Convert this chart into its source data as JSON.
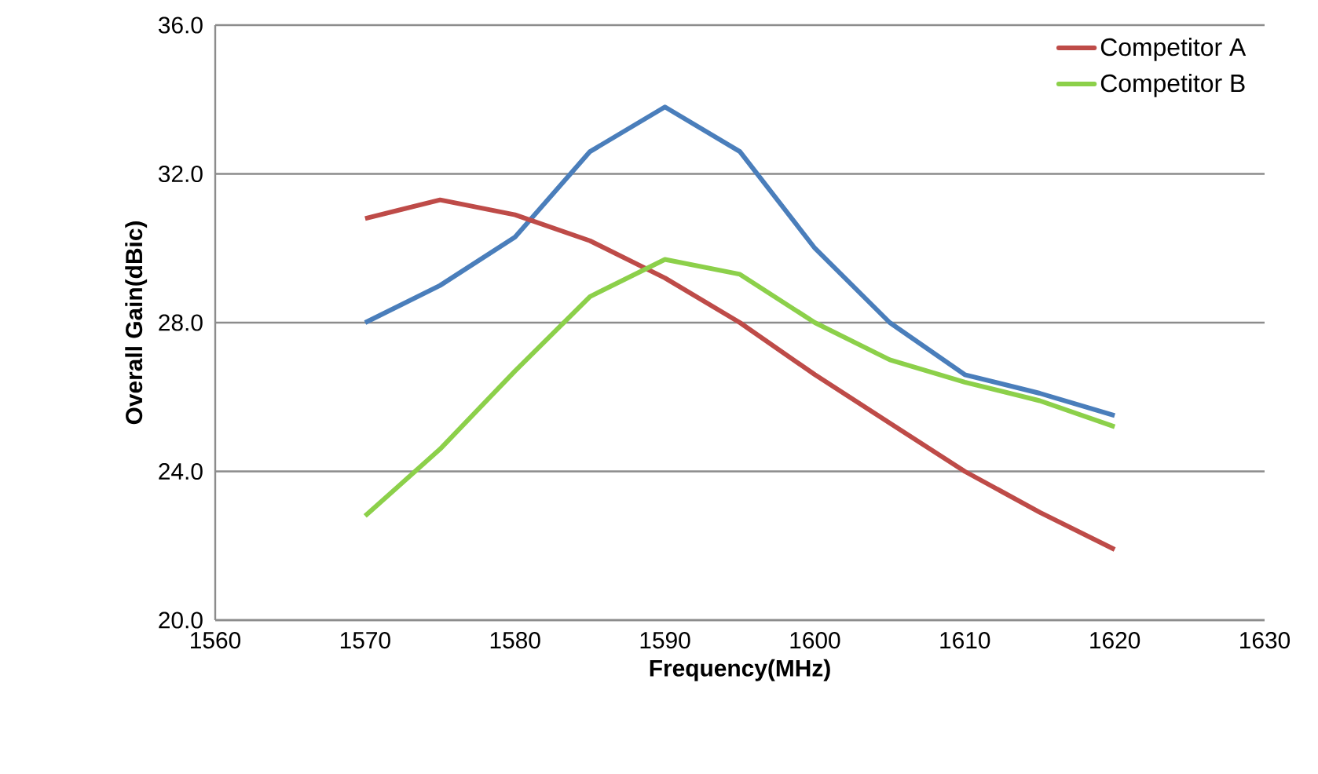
{
  "chart_data": {
    "type": "line",
    "xlabel": "Frequency(MHz)",
    "ylabel": "Overall Gain(dBic)",
    "x": [
      1570,
      1575,
      1580,
      1585,
      1590,
      1595,
      1600,
      1605,
      1610,
      1615,
      1620
    ],
    "series": [
      {
        "color": "#4a7ebb",
        "values": [
          28.0,
          29.0,
          30.3,
          32.6,
          33.8,
          32.6,
          30.0,
          28.0,
          26.6,
          26.1,
          25.5
        ]
      },
      {
        "name": "Competitor A",
        "color": "#be4b48",
        "values": [
          30.8,
          31.3,
          30.9,
          30.2,
          29.2,
          28.0,
          26.6,
          25.3,
          24.0,
          22.9,
          21.9
        ]
      },
      {
        "name": "Competitor B",
        "color": "#8cd04a",
        "values": [
          22.8,
          24.6,
          26.7,
          28.7,
          29.7,
          29.3,
          28.0,
          27.0,
          26.4,
          25.9,
          25.2
        ]
      }
    ],
    "xlim": [
      1560,
      1630
    ],
    "xticks": [
      1560,
      1570,
      1580,
      1590,
      1600,
      1610,
      1620,
      1630
    ],
    "ylim": [
      20,
      36
    ],
    "yticks": [
      {
        "value": 20,
        "label": "20.0"
      },
      {
        "value": 24,
        "label": "24.0"
      },
      {
        "value": 28,
        "label": "28.0"
      },
      {
        "value": 32,
        "label": "32.0"
      },
      {
        "value": 36,
        "label": "36.0"
      }
    ],
    "grid": "y",
    "legend": "top right",
    "marker": "none",
    "line_style": "solid"
  }
}
